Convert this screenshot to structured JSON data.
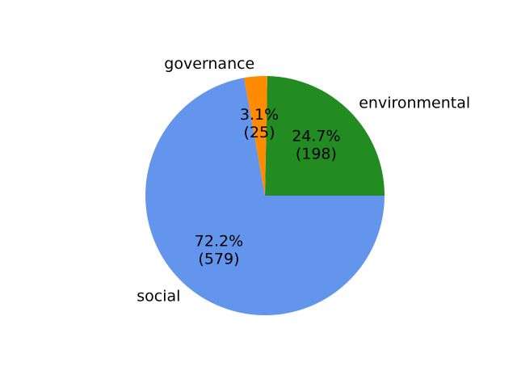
{
  "chart_data": {
    "type": "pie",
    "title": "",
    "slices": [
      {
        "label": "environmental",
        "value": 198,
        "percent_label": "24.7%",
        "count_label": "(198)",
        "color": "#228b22"
      },
      {
        "label": "governance",
        "value": 25,
        "percent_label": "3.1%",
        "count_label": "(25)",
        "color": "#ff8c00"
      },
      {
        "label": "social",
        "value": 579,
        "percent_label": "72.2%",
        "count_label": "(579)",
        "color": "#6495ed"
      }
    ],
    "start_angle_deg": 0,
    "direction": "counterclockwise",
    "legend": "none"
  }
}
